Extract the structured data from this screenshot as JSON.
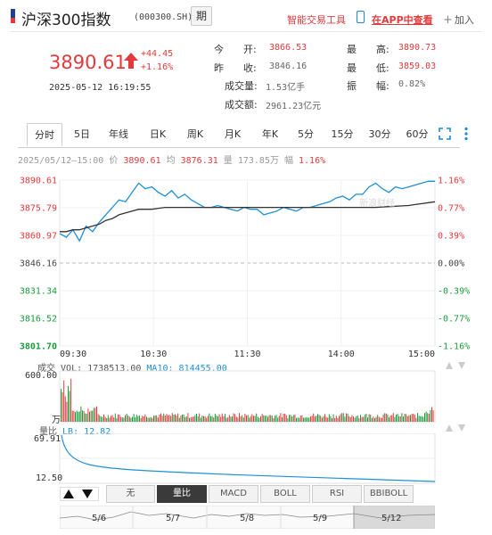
{
  "header": {
    "title": "沪深300指数",
    "code": "(000300.SH)",
    "period_button": "期",
    "smart_trade": "智能交易工具",
    "app_link": "在APP中查看",
    "add_label": "加入"
  },
  "quote": {
    "price": "3890.61",
    "change": "+44.45",
    "change_pct": "+1.16%",
    "timestamp": "2025-05-12 16:19:55",
    "fields": {
      "open_label": "今　　开:",
      "open": "3866.53",
      "prev_close_label": "昨　　收:",
      "prev_close": "3846.16",
      "volume_label": "成交量:",
      "volume": "1.53亿手",
      "amount_label": "成交额:",
      "amount": "2961.23亿元",
      "high_label": "最　　高:",
      "high": "3890.73",
      "low_label": "最　　低:",
      "low": "3859.03",
      "amplitude_label": "振　　幅:",
      "amplitude": "0.82%"
    }
  },
  "tabs": [
    "分时",
    "5日",
    "年线",
    "日K",
    "周K",
    "月K",
    "年K",
    "5分",
    "15分",
    "30分",
    "60分"
  ],
  "info_bar": {
    "date": "2025/05/12—15:00",
    "price_label": "价",
    "price": "3890.61",
    "avg_label": "均",
    "avg": "3876.31",
    "vol_label": "量",
    "vol": "173.85万",
    "amp_label": "幅",
    "amp": "1.16%"
  },
  "watermark": "新浪财经",
  "price_axis_left": [
    "3890.61",
    "3875.79",
    "3860.97",
    "3846.16",
    "3831.34",
    "3816.52",
    "3801.70"
  ],
  "price_axis_right": [
    "1.16%",
    "0.77%",
    "0.39%",
    "0.00%",
    "-0.39%",
    "-0.77%",
    "-1.16%"
  ],
  "time_axis": [
    "09:30",
    "10:30",
    "11:30",
    "14:00",
    "15:00"
  ],
  "volume_panel": {
    "title": "成交",
    "vol_label": "VOL:",
    "vol": "1738513.00",
    "ma_label": "MA10:",
    "ma": "814455.00",
    "y_top": "600.00",
    "unit": "万"
  },
  "lb_panel": {
    "title": "量比",
    "lb_label": "LB:",
    "lb": "12.82",
    "y_top": "69.91",
    "y_bottom": "12.50"
  },
  "indicators": [
    "无",
    "量比",
    "MACD",
    "BOLL",
    "RSI",
    "BBIBOLL"
  ],
  "navigator_dates": [
    "5/6",
    "5/7",
    "5/8",
    "5/9",
    "5/12"
  ],
  "colors": {
    "up": "#e4393c",
    "down": "#1a9b3c",
    "price_line": "#1e90d6",
    "avg_line": "#333333"
  },
  "chart_data": {
    "type": "line",
    "series": [
      {
        "values": [
          3862,
          3860,
          3864,
          3858,
          3866,
          3863,
          3868,
          3872,
          3876,
          3880,
          3879,
          3884,
          3889,
          3886,
          3887,
          3884,
          3882,
          3885,
          3881,
          3883,
          3880,
          3878,
          3876,
          3876,
          3877,
          3876,
          3875,
          3874,
          3876,
          3875,
          3875,
          3872,
          3873,
          3874,
          3876,
          3875,
          3874,
          3876,
          3876,
          3877,
          3878,
          3879,
          3881,
          3882,
          3880,
          3883,
          3883,
          3887,
          3889,
          3886,
          3884,
          3887,
          3886,
          3887,
          3888,
          3889,
          3890,
          3890
        ],
        "color": "#1e90d6"
      },
      {
        "values": [
          3863,
          3863,
          3864,
          3864,
          3865,
          3866,
          3867,
          3869,
          3870,
          3872,
          3873,
          3874,
          3875,
          3875,
          3875,
          3875.5,
          3876,
          3876,
          3876,
          3876,
          3876,
          3876,
          3876,
          3876,
          3876,
          3876,
          3876,
          3876,
          3876,
          3876,
          3876,
          3876,
          3876,
          3876,
          3876,
          3876,
          3876,
          3876,
          3876,
          3876,
          3876,
          3876,
          3876,
          3876,
          3876,
          3876,
          3876,
          3876,
          3876,
          3876.2,
          3876.4,
          3876.6,
          3876.8,
          3877,
          3877.5,
          3878,
          3878.5,
          3879
        ],
        "color": "#333333"
      }
    ],
    "ylim": [
      3801.7,
      3890.61
    ],
    "y_ticks": [
      3890.61,
      3875.79,
      3860.97,
      3846.16,
      3831.34,
      3816.52,
      3801.7
    ],
    "x_ticks": [
      "09:30",
      "10:30",
      "11:30",
      "14:00",
      "15:00"
    ],
    "baseline": 3846.16
  }
}
